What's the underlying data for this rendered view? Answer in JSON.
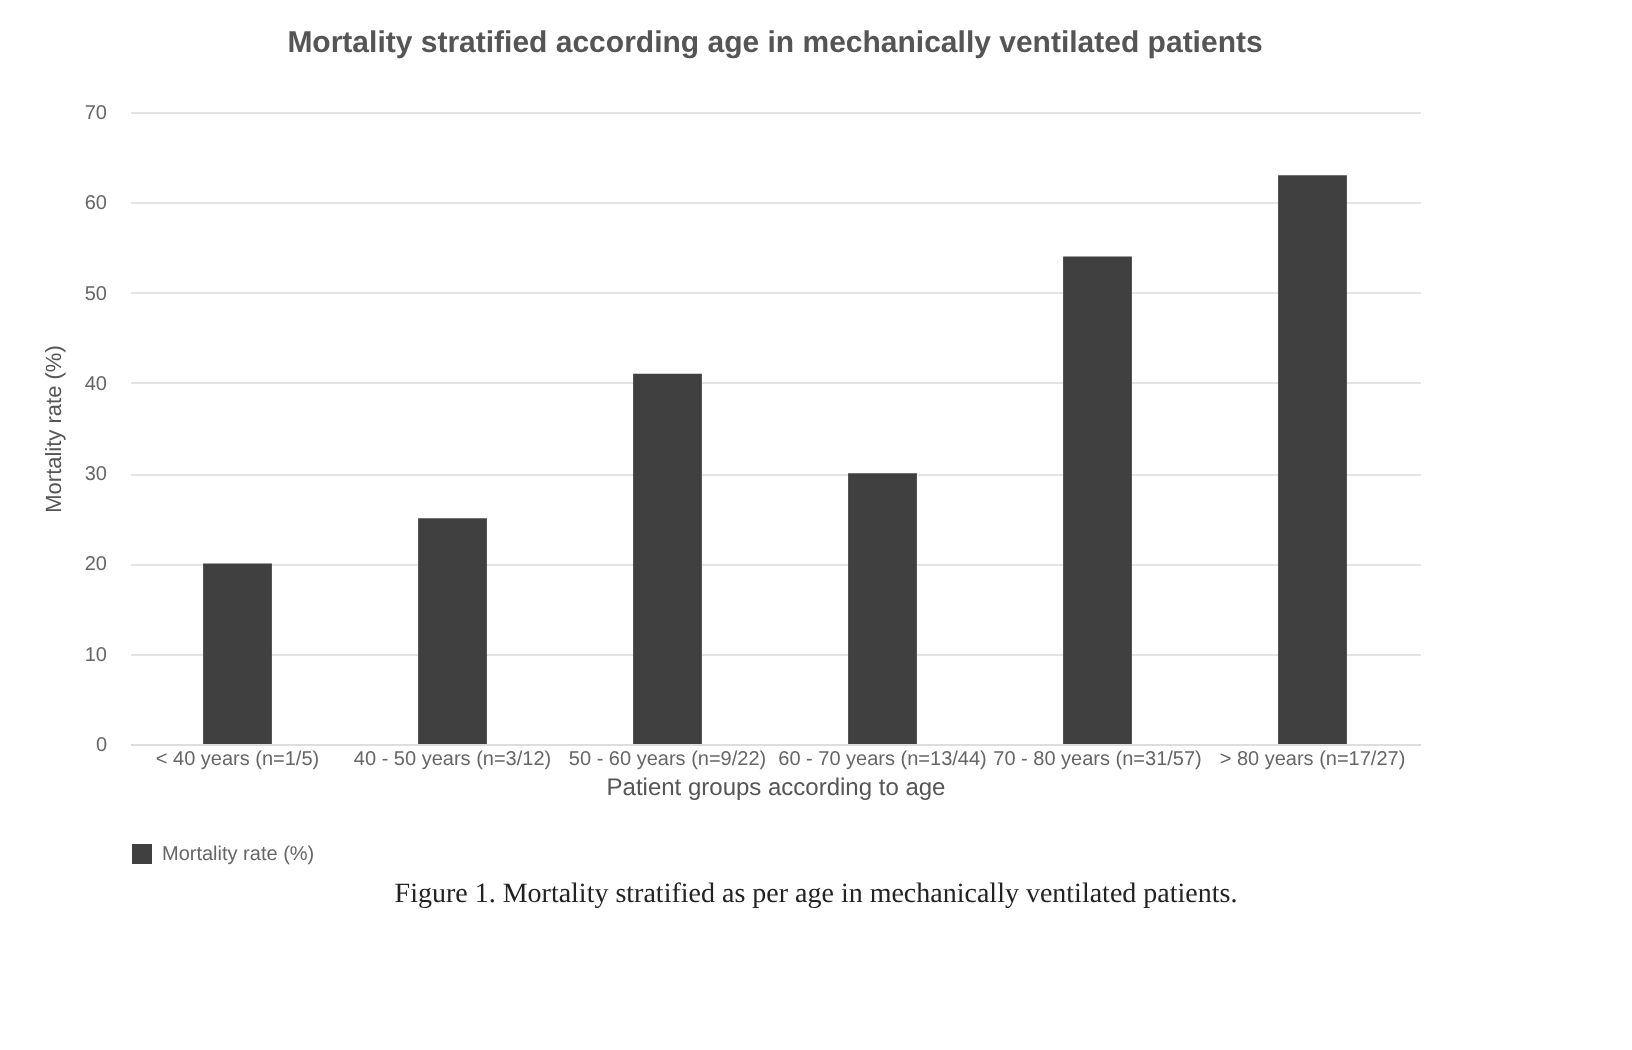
{
  "chart_data": {
    "type": "bar",
    "title": "Mortality stratified according age in mechanically ventilated patients",
    "xlabel": "Patient groups according to age",
    "ylabel": "Mortality rate (%)",
    "categories": [
      "< 40 years (n=1/5)",
      "40 - 50 years (n=3/12)",
      "50 - 60 years (n=9/22)",
      "60 - 70 years (n=13/44)",
      "70 - 80 years (n=31/57)",
      "> 80 years (n=17/27)"
    ],
    "series": [
      {
        "name": "Mortality rate (%)",
        "color": "#404040",
        "values": [
          20,
          25,
          41,
          30,
          54,
          63
        ]
      }
    ],
    "ylim": [
      0,
      70
    ],
    "yticks": [
      0,
      10,
      20,
      30,
      40,
      50,
      60,
      70
    ],
    "grid": "y",
    "legend": "bottom",
    "annotations": [
      "Figure 1. Mortality stratified as per age in mechanically ventilated patients."
    ]
  }
}
